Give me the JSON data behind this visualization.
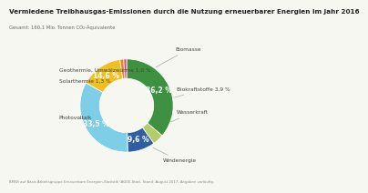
{
  "title": "Vermiedene Treibhausgas-Emissionen durch die Nutzung erneuerbarer Energien im Jahr 2016",
  "subtitle": "Gesamt: 160,1 Mio. Tonnen CO₂-Äquivalente",
  "segments": [
    {
      "label": "Biomasse",
      "value": 36.2,
      "color": "#3d9140",
      "label_inside": "36,2 %"
    },
    {
      "label": "Biokraftstoffe 3,9 %",
      "value": 3.9,
      "color": "#b5cc6a",
      "label_inside": null
    },
    {
      "label": "Wasserkraft",
      "value": 9.6,
      "color": "#2e5fa3",
      "label_inside": "9,6 %"
    },
    {
      "label": "Windenergie",
      "value": 33.5,
      "color": "#7ecee8",
      "label_inside": "33,5 %"
    },
    {
      "label": "Photovoltaik",
      "value": 14.6,
      "color": "#f0c020",
      "label_inside": "14,6 %"
    },
    {
      "label": "Solarthermie 1,3 %",
      "value": 1.3,
      "color": "#f08020",
      "label_inside": null
    },
    {
      "label": "Geothermie, Umwälzwärme 1,0 %",
      "value": 1.0,
      "color": "#e84070",
      "label_inside": null
    }
  ],
  "footnote": "BMWi auf Basis Arbeitsgruppe Erneuerbare Energien-Statistik (AGEE-Stat), Stand: August 2017, Angaben vorläufig.",
  "background_color": "#f7f7f2",
  "title_fontsize": 5.2,
  "subtitle_fontsize": 3.8,
  "label_fontsize": 4.2,
  "inside_label_fontsize": 5.5,
  "footnote_fontsize": 2.8
}
